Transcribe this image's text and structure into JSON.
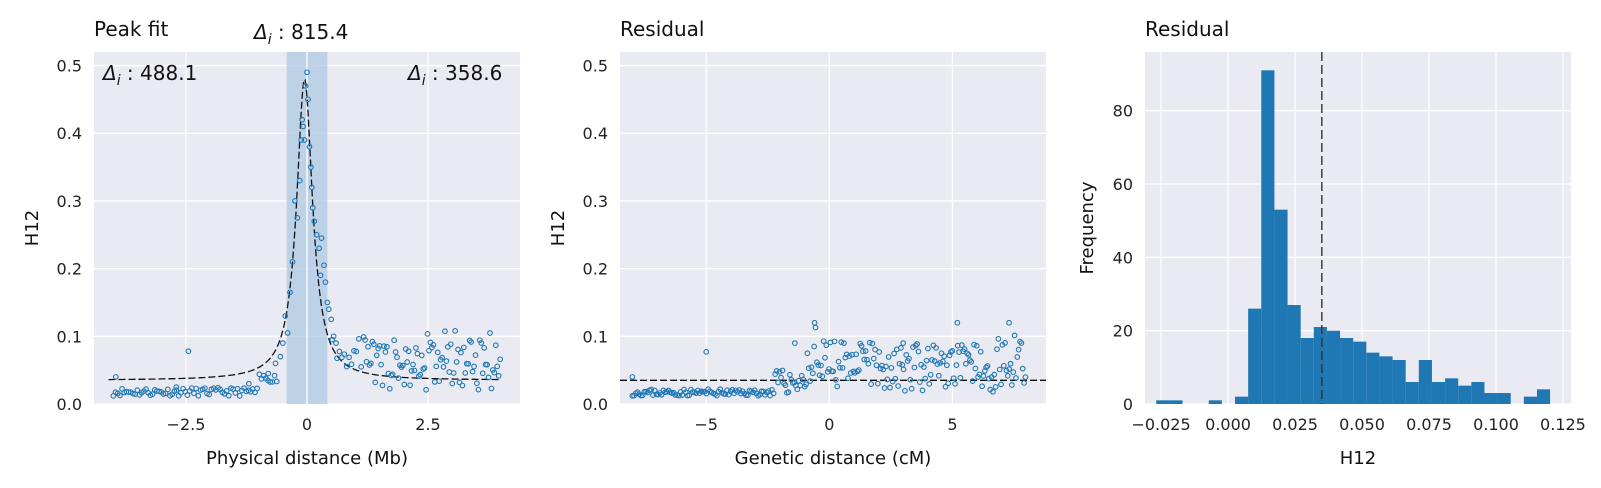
{
  "chart_data": [
    {
      "type": "scatter",
      "title": "Peak fit",
      "xlabel": "Physical distance (Mb)",
      "ylabel": "H12",
      "xlim": [
        -4.4,
        4.4
      ],
      "ylim": [
        0,
        0.52
      ],
      "xticks": [
        -2.5,
        0,
        2.5
      ],
      "xtick_labels": [
        "−2.5",
        "0",
        "2.5"
      ],
      "yticks": [
        0.0,
        0.1,
        0.2,
        0.3,
        0.4,
        0.5
      ],
      "ytick_labels": [
        "0.0",
        "0.1",
        "0.2",
        "0.3",
        "0.4",
        "0.5"
      ],
      "grid": true,
      "shaded_band": [
        -0.42,
        0.42
      ],
      "annotations": {
        "center": "815.4",
        "left": "488.1",
        "right": "358.6",
        "delta_prefix": "Δ",
        "delta_sub": "i"
      },
      "fit_curve": {
        "style": "dashed",
        "color": "#111111",
        "baseline": 0.035,
        "peak": 0.48,
        "center": -0.05,
        "width": 0.2
      },
      "points": {
        "color": "#1f77b4",
        "core": [
          [
            -0.55,
            0.07
          ],
          [
            -0.5,
            0.09
          ],
          [
            -0.45,
            0.13
          ],
          [
            -0.4,
            0.105
          ],
          [
            -0.35,
            0.165
          ],
          [
            -0.3,
            0.21
          ],
          [
            -0.25,
            0.3
          ],
          [
            -0.2,
            0.275
          ],
          [
            -0.15,
            0.33
          ],
          [
            -0.12,
            0.39
          ],
          [
            -0.1,
            0.42
          ],
          [
            -0.08,
            0.41
          ],
          [
            -0.05,
            0.39
          ],
          [
            -0.03,
            0.47
          ],
          [
            0.0,
            0.49
          ],
          [
            0.02,
            0.45
          ],
          [
            0.05,
            0.38
          ],
          [
            0.08,
            0.35
          ],
          [
            0.1,
            0.32
          ],
          [
            0.12,
            0.29
          ],
          [
            0.15,
            0.27
          ],
          [
            0.2,
            0.25
          ],
          [
            0.25,
            0.23
          ],
          [
            0.28,
            0.19
          ],
          [
            0.3,
            0.245
          ],
          [
            0.35,
            0.205
          ],
          [
            0.38,
            0.18
          ],
          [
            0.42,
            0.15
          ],
          [
            0.45,
            0.14
          ],
          [
            0.5,
            0.125
          ],
          [
            0.52,
            0.095
          ],
          [
            0.55,
            0.1
          ],
          [
            0.6,
            0.09
          ]
        ],
        "outliers": [
          [
            -2.45,
            0.078
          ],
          [
            -3.95,
            0.04
          ],
          [
            -2.7,
            0.025
          ],
          [
            -1.2,
            0.03
          ],
          [
            -0.8,
            0.045
          ],
          [
            -0.65,
            0.06
          ]
        ]
      }
    },
    {
      "type": "scatter",
      "title": "Residual",
      "xlabel": "Genetic distance (cM)",
      "ylabel": "H12",
      "xlim": [
        -8.5,
        8.8
      ],
      "ylim": [
        0,
        0.52
      ],
      "xticks": [
        -5,
        0,
        5
      ],
      "xtick_labels": [
        "−5",
        "0",
        "5"
      ],
      "yticks": [
        0.0,
        0.1,
        0.2,
        0.3,
        0.4,
        0.5
      ],
      "ytick_labels": [
        "0.0",
        "0.1",
        "0.2",
        "0.3",
        "0.4",
        "0.5"
      ],
      "grid": true,
      "hline": 0.035,
      "points": {
        "color": "#1f77b4",
        "outliers": [
          [
            -5.0,
            0.077
          ],
          [
            -8.0,
            0.04
          ],
          [
            -1.4,
            0.09
          ],
          [
            -0.6,
            0.12
          ],
          [
            3.0,
            0.09
          ],
          [
            5.2,
            0.12
          ],
          [
            7.3,
            0.12
          ]
        ]
      }
    },
    {
      "type": "bar",
      "title": "Residual",
      "xlabel": "H12",
      "ylabel": "Frequency",
      "xlim": [
        -0.031,
        0.128
      ],
      "ylim": [
        0,
        96
      ],
      "xticks": [
        -0.025,
        0.0,
        0.025,
        0.05,
        0.075,
        0.1,
        0.125
      ],
      "xtick_labels": [
        "−0.025",
        "0.000",
        "0.025",
        "0.050",
        "0.075",
        "0.100",
        "0.125"
      ],
      "yticks": [
        0,
        20,
        40,
        60,
        80
      ],
      "ytick_labels": [
        "0",
        "20",
        "40",
        "60",
        "80"
      ],
      "grid": true,
      "color": "#1f77b4",
      "vline": 0.035,
      "bin_width": 0.0049,
      "bin_edges": [
        -0.0268,
        -0.0219,
        -0.017,
        -0.0121,
        -0.0072,
        -0.0023,
        0.0026,
        0.0075,
        0.0124,
        0.0173,
        0.0222,
        0.0271,
        0.032,
        0.0369,
        0.0418,
        0.0467,
        0.0516,
        0.0565,
        0.0614,
        0.0663,
        0.0712,
        0.0761,
        0.081,
        0.0859,
        0.0908,
        0.0957,
        0.1006,
        0.1055,
        0.1104,
        0.1153
      ],
      "counts": [
        1,
        1,
        0,
        0,
        1,
        0,
        2,
        26,
        91,
        53,
        27,
        18,
        21,
        20,
        18,
        17,
        14,
        13,
        12,
        6,
        12,
        6,
        7,
        5,
        6,
        3,
        3,
        0,
        2,
        4
      ]
    }
  ]
}
